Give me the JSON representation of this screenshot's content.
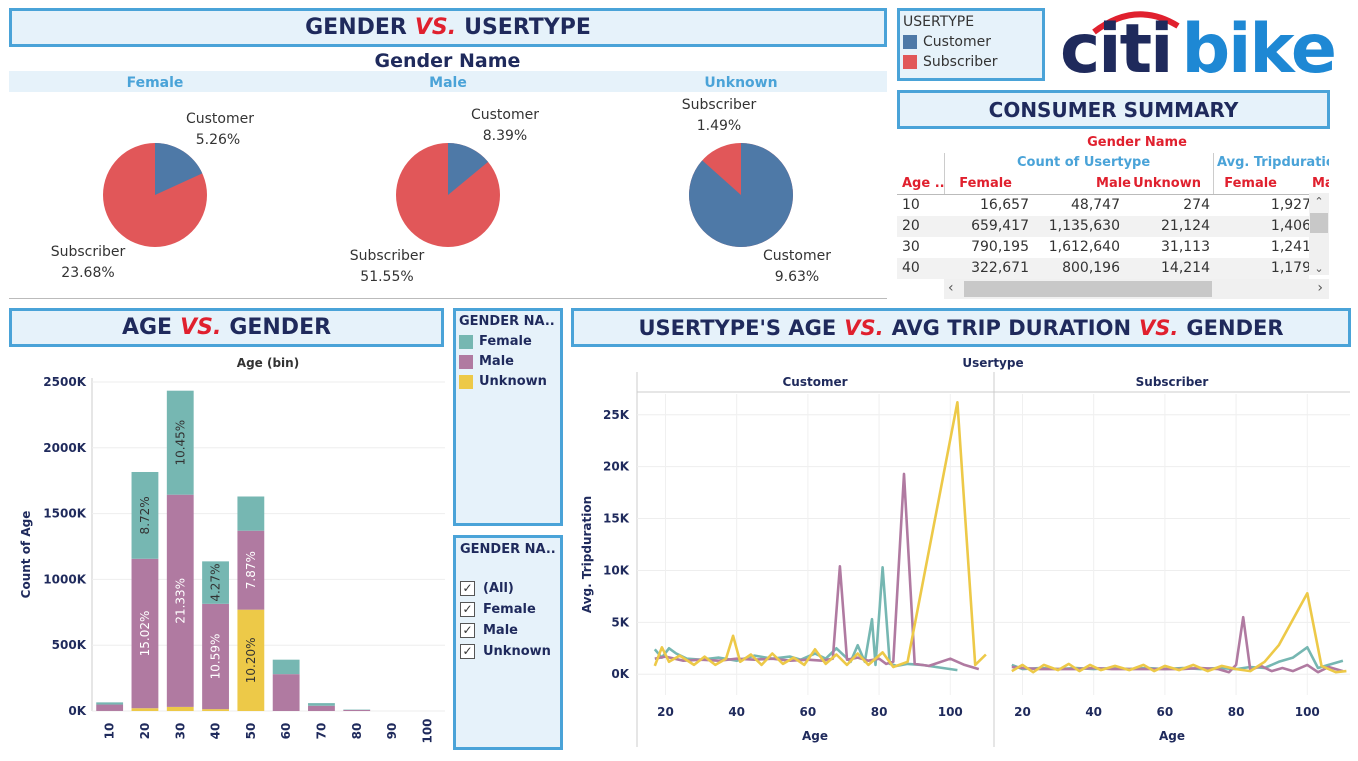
{
  "banners": {
    "gender_usertype": {
      "left": "GENDER",
      "vs": "VS.",
      "right": "USERTYPE"
    },
    "consumer_summary": "CONSUMER SUMMARY",
    "age_gender": {
      "left": "AGE",
      "vs": "VS.",
      "right": "GENDER"
    },
    "usertype_age": {
      "p1": "USERTYPE'S AGE",
      "vs1": "VS.",
      "p2": "AVG TRIP DURATION",
      "vs2": "VS.",
      "p3": "GENDER"
    }
  },
  "logo": {
    "part1": "citi",
    "part2": "bike"
  },
  "usertype_legend": {
    "title": "USERTYPE",
    "items": [
      {
        "label": "Customer",
        "color": "#4e79a7"
      },
      {
        "label": "Subscriber",
        "color": "#e15759"
      }
    ]
  },
  "gender_filter": {
    "title": "GENDER NA..",
    "items": [
      {
        "label": "(All)",
        "checked": true
      },
      {
        "label": "Female",
        "checked": true
      },
      {
        "label": "Male",
        "checked": true
      },
      {
        "label": "Unknown",
        "checked": true
      }
    ]
  },
  "gender_legend": {
    "title": "GENDER NA..",
    "items": [
      {
        "label": "Female",
        "color": "#76b7b2"
      },
      {
        "label": "Male",
        "color": "#b07aa1"
      },
      {
        "label": "Unknown",
        "color": "#edc948"
      }
    ]
  },
  "summary": {
    "title": "Gender Name",
    "group1": "Count of Usertype",
    "group2": "Avg. Tripduratio",
    "row_header": "Age ..",
    "columns": [
      "Female",
      "Male",
      "Unknown",
      "Female",
      "Ma"
    ],
    "rows": [
      {
        "age": "10",
        "values": [
          "16,657",
          "48,747",
          "274",
          "1,927"
        ]
      },
      {
        "age": "20",
        "values": [
          "659,417",
          "1,135,630",
          "21,124",
          "1,406"
        ]
      },
      {
        "age": "30",
        "values": [
          "790,195",
          "1,612,640",
          "31,113",
          "1,241"
        ]
      },
      {
        "age": "40",
        "values": [
          "322,671",
          "800,196",
          "14,214",
          "1,179"
        ]
      }
    ]
  },
  "chart_data": [
    {
      "type": "pie",
      "title": "Gender Name",
      "facets": [
        {
          "name": "Female",
          "slices": [
            {
              "label": "Customer",
              "pct": "5.26%",
              "value": 5.26
            },
            {
              "label": "Subscriber",
              "pct": "23.68%",
              "value": 23.68
            }
          ]
        },
        {
          "name": "Male",
          "slices": [
            {
              "label": "Customer",
              "pct": "8.39%",
              "value": 8.39
            },
            {
              "label": "Subscriber",
              "pct": "51.55%",
              "value": 51.55
            }
          ]
        },
        {
          "name": "Unknown",
          "slices": [
            {
              "label": "Customer",
              "pct": "9.63%",
              "value": 9.63
            },
            {
              "label": "Subscriber",
              "pct": "1.49%",
              "value": 1.49
            }
          ]
        }
      ],
      "colors": {
        "Customer": "#4e79a7",
        "Subscriber": "#e15759"
      }
    },
    {
      "type": "bar",
      "title": "Age (bin)",
      "ylabel": "Count of Age",
      "categories": [
        "10",
        "20",
        "30",
        "40",
        "50",
        "60",
        "70",
        "80",
        "90",
        "100"
      ],
      "ylim": [
        0,
        2500000
      ],
      "yticks": [
        "0K",
        "500K",
        "1000K",
        "1500K",
        "2000K",
        "2500K"
      ],
      "series": [
        {
          "name": "Unknown",
          "color": "#edc948",
          "values": [
            274,
            21124,
            31113,
            14214,
            770000,
            0,
            0,
            0,
            0,
            0
          ]
        },
        {
          "name": "Male",
          "color": "#b07aa1",
          "values": [
            48747,
            1135630,
            1612640,
            800196,
            600000,
            280000,
            40000,
            8000,
            0,
            0
          ]
        },
        {
          "name": "Female",
          "color": "#76b7b2",
          "values": [
            16657,
            659417,
            790195,
            322671,
            260000,
            110000,
            20000,
            3000,
            0,
            0
          ]
        }
      ],
      "labels": [
        {
          "cat": "20",
          "series": "Male",
          "text": "15.02%"
        },
        {
          "cat": "20",
          "series": "Female",
          "text": "8.72%"
        },
        {
          "cat": "30",
          "series": "Male",
          "text": "21.33%"
        },
        {
          "cat": "30",
          "series": "Female",
          "text": "10.45%"
        },
        {
          "cat": "40",
          "series": "Male",
          "text": "10.59%"
        },
        {
          "cat": "40",
          "series": "Female",
          "text": "4.27%"
        },
        {
          "cat": "50",
          "series": "Unknown",
          "text": "10.20%"
        },
        {
          "cat": "50",
          "series": "Male",
          "text": "7.87%"
        }
      ]
    },
    {
      "type": "line",
      "title": "Usertype",
      "xlabel": "Age",
      "ylabel": "Avg. Tripduration",
      "xlim": [
        12,
        112
      ],
      "ylim": [
        -2000,
        27000
      ],
      "xticks": [
        20,
        40,
        60,
        80,
        100
      ],
      "yticks": [
        {
          "v": 0,
          "t": "0K"
        },
        {
          "v": 5000,
          "t": "5K"
        },
        {
          "v": 10000,
          "t": "10K"
        },
        {
          "v": 15000,
          "t": "15K"
        },
        {
          "v": 20000,
          "t": "20K"
        },
        {
          "v": 25000,
          "t": "25K"
        }
      ],
      "facets": [
        {
          "name": "Customer",
          "series": [
            {
              "name": "Female",
              "color": "#76b7b2",
              "points": [
                [
                  17,
                  2400
                ],
                [
                  19,
                  1600
                ],
                [
                  21,
                  2500
                ],
                [
                  23,
                  2000
                ],
                [
                  26,
                  1500
                ],
                [
                  30,
                  1400
                ],
                [
                  35,
                  1600
                ],
                [
                  40,
                  1300
                ],
                [
                  45,
                  1800
                ],
                [
                  50,
                  1500
                ],
                [
                  55,
                  1700
                ],
                [
                  58,
                  1400
                ],
                [
                  62,
                  2000
                ],
                [
                  65,
                  1500
                ],
                [
                  68,
                  2500
                ],
                [
                  72,
                  1200
                ],
                [
                  74,
                  2800
                ],
                [
                  76,
                  1200
                ],
                [
                  78,
                  5300
                ],
                [
                  79,
                  900
                ],
                [
                  81,
                  10300
                ],
                [
                  83,
                  1000
                ],
                [
                  85,
                  800
                ],
                [
                  88,
                  1000
                ],
                [
                  92,
                  900
                ],
                [
                  96,
                  700
                ],
                [
                  102,
                  400
                ]
              ]
            },
            {
              "name": "Male",
              "color": "#b07aa1",
              "points": [
                [
                  17,
                  1500
                ],
                [
                  20,
                  1700
                ],
                [
                  25,
                  1300
                ],
                [
                  30,
                  1400
                ],
                [
                  35,
                  1300
                ],
                [
                  40,
                  1500
                ],
                [
                  45,
                  1400
                ],
                [
                  50,
                  1500
                ],
                [
                  55,
                  1300
                ],
                [
                  60,
                  1400
                ],
                [
                  64,
                  1300
                ],
                [
                  67,
                  1500
                ],
                [
                  69,
                  10400
                ],
                [
                  71,
                  1400
                ],
                [
                  74,
                  1600
                ],
                [
                  77,
                  1300
                ],
                [
                  80,
                  1500
                ],
                [
                  82,
                  1000
                ],
                [
                  84,
                  1200
                ],
                [
                  87,
                  19300
                ],
                [
                  90,
                  1000
                ],
                [
                  94,
                  800
                ],
                [
                  100,
                  1500
                ],
                [
                  104,
                  900
                ],
                [
                  108,
                  500
                ]
              ]
            },
            {
              "name": "Unknown",
              "color": "#edc948",
              "points": [
                [
                  17,
                  800
                ],
                [
                  19,
                  2600
                ],
                [
                  21,
                  1200
                ],
                [
                  24,
                  1800
                ],
                [
                  28,
                  900
                ],
                [
                  31,
                  1700
                ],
                [
                  34,
                  900
                ],
                [
                  37,
                  1500
                ],
                [
                  39,
                  3700
                ],
                [
                  41,
                  1200
                ],
                [
                  44,
                  1900
                ],
                [
                  47,
                  900
                ],
                [
                  50,
                  2000
                ],
                [
                  53,
                  1000
                ],
                [
                  56,
                  1600
                ],
                [
                  59,
                  900
                ],
                [
                  62,
                  2400
                ],
                [
                  65,
                  1000
                ],
                [
                  68,
                  1900
                ],
                [
                  71,
                  900
                ],
                [
                  74,
                  2000
                ],
                [
                  77,
                  900
                ],
                [
                  81,
                  2100
                ],
                [
                  84,
                  700
                ],
                [
                  88,
                  1200
                ],
                [
                  102,
                  26200
                ],
                [
                  107,
                  900
                ],
                [
                  110,
                  1900
                ]
              ]
            }
          ]
        },
        {
          "name": "Subscriber",
          "series": [
            {
              "name": "Female",
              "color": "#76b7b2",
              "points": [
                [
                  17,
                  900
                ],
                [
                  20,
                  500
                ],
                [
                  25,
                  600
                ],
                [
                  30,
                  500
                ],
                [
                  35,
                  600
                ],
                [
                  40,
                  500
                ],
                [
                  45,
                  600
                ],
                [
                  50,
                  500
                ],
                [
                  55,
                  600
                ],
                [
                  60,
                  500
                ],
                [
                  65,
                  600
                ],
                [
                  70,
                  500
                ],
                [
                  75,
                  600
                ],
                [
                  80,
                  500
                ],
                [
                  84,
                  700
                ],
                [
                  88,
                  600
                ],
                [
                  92,
                  1200
                ],
                [
                  96,
                  1600
                ],
                [
                  100,
                  2600
                ],
                [
                  103,
                  600
                ],
                [
                  106,
                  900
                ],
                [
                  110,
                  1300
                ]
              ]
            },
            {
              "name": "Male",
              "color": "#b07aa1",
              "points": [
                [
                  17,
                  700
                ],
                [
                  20,
                  600
                ],
                [
                  25,
                  500
                ],
                [
                  30,
                  500
                ],
                [
                  35,
                  500
                ],
                [
                  40,
                  600
                ],
                [
                  45,
                  500
                ],
                [
                  50,
                  500
                ],
                [
                  55,
                  500
                ],
                [
                  60,
                  500
                ],
                [
                  65,
                  500
                ],
                [
                  70,
                  600
                ],
                [
                  75,
                  500
                ],
                [
                  78,
                  200
                ],
                [
                  80,
                  900
                ],
                [
                  82,
                  5500
                ],
                [
                  84,
                  400
                ],
                [
                  87,
                  800
                ],
                [
                  90,
                  300
                ],
                [
                  93,
                  600
                ],
                [
                  96,
                  300
                ],
                [
                  100,
                  900
                ],
                [
                  103,
                  200
                ],
                [
                  106,
                  700
                ],
                [
                  110,
                  300
                ]
              ]
            },
            {
              "name": "Unknown",
              "color": "#edc948",
              "points": [
                [
                  17,
                  300
                ],
                [
                  20,
                  900
                ],
                [
                  23,
                  200
                ],
                [
                  26,
                  900
                ],
                [
                  30,
                  400
                ],
                [
                  33,
                  1000
                ],
                [
                  36,
                  300
                ],
                [
                  39,
                  900
                ],
                [
                  42,
                  400
                ],
                [
                  46,
                  800
                ],
                [
                  50,
                  400
                ],
                [
                  54,
                  900
                ],
                [
                  57,
                  300
                ],
                [
                  60,
                  800
                ],
                [
                  64,
                  400
                ],
                [
                  68,
                  900
                ],
                [
                  72,
                  300
                ],
                [
                  76,
                  800
                ],
                [
                  80,
                  500
                ],
                [
                  84,
                  300
                ],
                [
                  88,
                  1200
                ],
                [
                  92,
                  2800
                ],
                [
                  100,
                  7800
                ],
                [
                  104,
                  800
                ],
                [
                  108,
                  200
                ],
                [
                  111,
                  300
                ]
              ]
            }
          ]
        }
      ]
    }
  ]
}
